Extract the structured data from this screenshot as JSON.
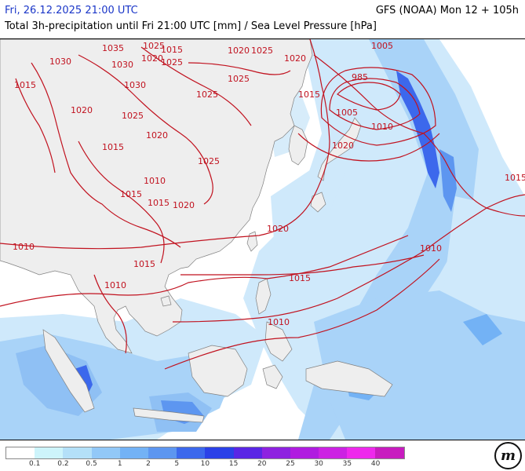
{
  "header": {
    "datetime": "Fri, 26.12.2025 21:00 UTC",
    "model_run": "GFS (NOAA) Mon 12 + 105h",
    "subtitle": "Total 3h-precipitation until Fri 21:00 UTC [mm] / Sea Level Pressure [hPa]"
  },
  "colors": {
    "land": "#eeeeee",
    "sea": "#ffffff",
    "isobar": "#c1121f",
    "date_text": "#1a36c8"
  },
  "isobar_labels": [
    {
      "text": "1035"
    },
    {
      "text": "1025"
    },
    {
      "text": "1015"
    },
    {
      "text": "1020"
    },
    {
      "text": "1025"
    },
    {
      "text": "1030"
    },
    {
      "text": "1030"
    },
    {
      "text": "1020"
    },
    {
      "text": "1025"
    },
    {
      "text": "1020"
    },
    {
      "text": "1015"
    },
    {
      "text": "1030"
    },
    {
      "text": "1025"
    },
    {
      "text": "1025"
    },
    {
      "text": "1015"
    },
    {
      "text": "1020"
    },
    {
      "text": "1025"
    },
    {
      "text": "1015"
    },
    {
      "text": "1020"
    },
    {
      "text": "1025"
    },
    {
      "text": "1015"
    },
    {
      "text": "1010"
    },
    {
      "text": "1015"
    },
    {
      "text": "1020"
    },
    {
      "text": "1020"
    },
    {
      "text": "1005"
    },
    {
      "text": "985"
    },
    {
      "text": "1005"
    },
    {
      "text": "1010"
    },
    {
      "text": "1020"
    },
    {
      "text": "1015"
    },
    {
      "text": "1010"
    },
    {
      "text": "1010"
    },
    {
      "text": "1015"
    },
    {
      "text": "1015"
    },
    {
      "text": "1010"
    },
    {
      "text": "1010"
    }
  ],
  "legend": {
    "colors": [
      "#ffffff",
      "#cdf4fb",
      "#b4e0f8",
      "#92c8f7",
      "#73b2f5",
      "#5d96f0",
      "#3c68ec",
      "#2b41e8",
      "#5a26e5",
      "#8e22e0",
      "#b01ce0",
      "#cc22e3",
      "#ee28ec",
      "#c81cbf"
    ],
    "labels": [
      "0.1",
      "0.2",
      "0.5",
      "1",
      "2",
      "5",
      "10",
      "15",
      "20",
      "25",
      "30",
      "35",
      "40"
    ]
  },
  "logo": {
    "text": "m"
  }
}
